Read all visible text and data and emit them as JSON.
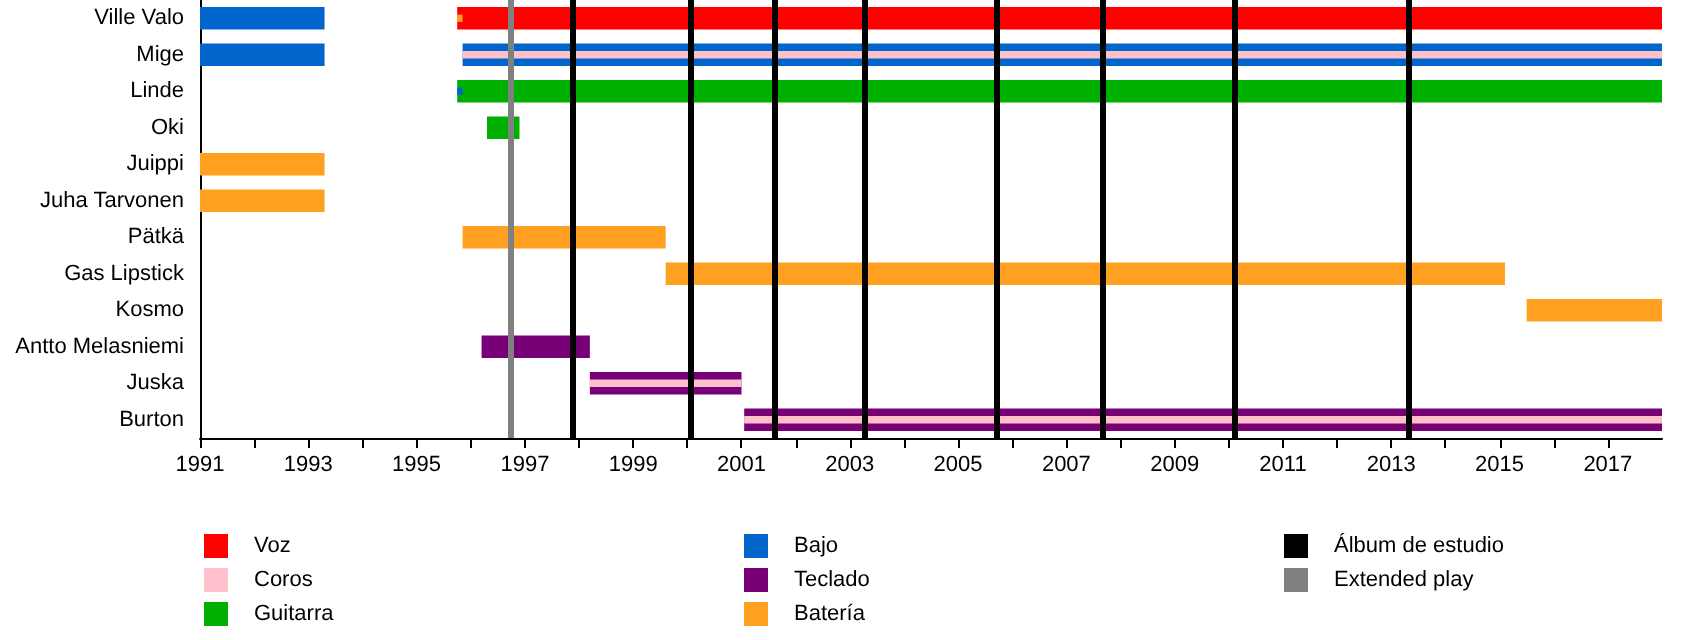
{
  "chart_data": {
    "type": "bar",
    "orientation": "horizontal",
    "legend": "bottom",
    "categories": [
      "Ville Valo",
      "Mige",
      "Linde",
      "Oki",
      "Juippi",
      "Juha Tarvonen",
      "Pätkä",
      "Gas Lipstick",
      "Kosmo",
      "Antto Melasniemi",
      "Juska",
      "Burton"
    ],
    "series": [
      {
        "name": "Voz",
        "color": "#ff0000",
        "base": [
          1995.75,
          null,
          null,
          null,
          null,
          null,
          null,
          null,
          null,
          null,
          null,
          null
        ],
        "values": [
          22.25,
          null,
          null,
          null,
          null,
          null,
          null,
          null,
          null,
          null,
          null,
          null
        ]
      },
      {
        "name": "Coros",
        "color": "#ffc0cb",
        "base": [
          null,
          1995.85,
          null,
          null,
          null,
          null,
          null,
          null,
          null,
          null,
          1998.2,
          2001.05
        ],
        "values": [
          null,
          22.15,
          null,
          null,
          null,
          null,
          null,
          null,
          null,
          null,
          2.8,
          16.95
        ]
      },
      {
        "name": "Guitarra",
        "color": "#00b000",
        "base": [
          null,
          null,
          1995.75,
          1996.3,
          null,
          null,
          null,
          null,
          null,
          null,
          null,
          null
        ],
        "values": [
          null,
          null,
          22.25,
          0.6,
          null,
          null,
          null,
          null,
          null,
          null,
          null,
          null
        ]
      },
      {
        "name": "Bajo",
        "color": "#0066cc",
        "base": [
          1991,
          1991,
          1995.75,
          null,
          null,
          null,
          null,
          null,
          null,
          null,
          null,
          null
        ],
        "values": [
          2.3,
          2.3,
          0.1,
          null,
          null,
          null,
          null,
          null,
          null,
          null,
          null,
          null
        ]
      },
      {
        "color": "#0066cc",
        "base": [
          null,
          1995.85,
          null,
          null,
          null,
          null,
          null,
          null,
          null,
          null,
          null,
          null
        ],
        "values": [
          null,
          22.15,
          null,
          null,
          null,
          null,
          null,
          null,
          null,
          null,
          null,
          null
        ]
      },
      {
        "name": "Teclado",
        "color": "#770077",
        "base": [
          null,
          null,
          null,
          null,
          null,
          null,
          null,
          null,
          null,
          1996.2,
          1998.2,
          2001.05
        ],
        "values": [
          null,
          null,
          null,
          null,
          null,
          null,
          null,
          null,
          null,
          2.0,
          2.8,
          16.95
        ]
      },
      {
        "name": "Batería",
        "color": "#ffa020",
        "base": [
          1995.75,
          null,
          null,
          null,
          1991,
          1991,
          1995.85,
          1999.6,
          2015.5,
          null,
          null,
          null
        ],
        "values": [
          0.1,
          null,
          null,
          null,
          2.3,
          2.3,
          3.75,
          15.5,
          2.5,
          null,
          null,
          null
        ]
      }
    ],
    "xlim": [
      1991,
      2018
    ],
    "xticks": [
      1991,
      {
        "value": 1992,
        "label": null
      },
      1993,
      {
        "value": 1994,
        "label": null
      },
      1995,
      {
        "value": 1996,
        "label": null
      },
      1997,
      {
        "value": 1998,
        "label": null
      },
      1999,
      {
        "value": 2000,
        "label": null
      },
      2001,
      {
        "value": 2002,
        "label": null
      },
      2003,
      {
        "value": 2004,
        "label": null
      },
      2005,
      {
        "value": 2006,
        "label": null
      },
      2007,
      {
        "value": 2008,
        "label": null
      },
      2009,
      {
        "value": 2010,
        "label": null
      },
      2011,
      {
        "value": 2012,
        "label": null
      },
      2013,
      {
        "value": 2014,
        "label": null
      },
      2015,
      {
        "value": 2016,
        "label": null
      },
      2017
    ],
    "ref_lines": [
      {
        "axis": "x",
        "value": 1997.87,
        "label": "Álbum de estudio",
        "color": "#000000"
      },
      {
        "axis": "x",
        "value": 2000.05,
        "label": null,
        "color": "#000000"
      },
      {
        "axis": "x",
        "value": 2001.6,
        "label": null,
        "color": "#000000"
      },
      {
        "axis": "x",
        "value": 2003.27,
        "label": null,
        "color": "#000000"
      },
      {
        "axis": "x",
        "value": 2005.72,
        "label": null,
        "color": "#000000"
      },
      {
        "axis": "x",
        "value": 2007.68,
        "label": null,
        "color": "#000000"
      },
      {
        "axis": "x",
        "value": 2010.09,
        "label": null,
        "color": "#000000"
      },
      {
        "axis": "x",
        "value": 2013.3,
        "label": null,
        "color": "#000000"
      },
      {
        "axis": "x",
        "value": 1996.75,
        "label": "Extended play",
        "color": "#808080"
      }
    ]
  }
}
